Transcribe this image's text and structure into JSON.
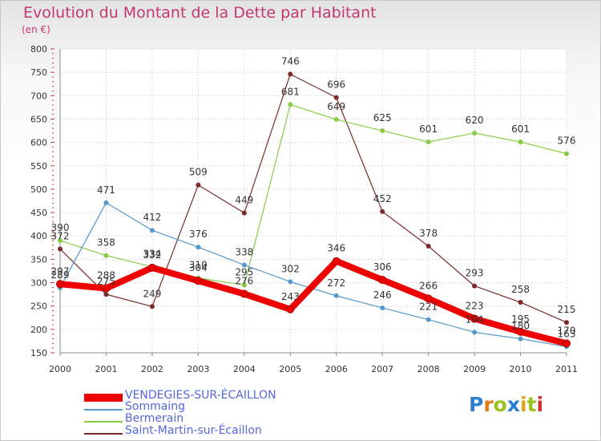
{
  "header": {
    "title": "Evolution du Montant de la Dette par Habitant",
    "subtitle": "(en €)"
  },
  "logo": {
    "letters": [
      "P",
      "r",
      "o",
      "x",
      "i",
      "t",
      "i"
    ],
    "colors": [
      "#2a7fd0",
      "#e07a16",
      "#9bc21c",
      "#2a7fd0",
      "#e0a516",
      "#9bc21c",
      "#d23030"
    ]
  },
  "chart_data": {
    "type": "line",
    "title": "Evolution du Montant de la Dette par Habitant",
    "subtitle": "(en €)",
    "xlabel": "",
    "ylabel": "",
    "x": [
      "2000",
      "2001",
      "2002",
      "2003",
      "2004",
      "2005",
      "2006",
      "2007",
      "2008",
      "2009",
      "2010",
      "2011"
    ],
    "ylim": [
      150,
      800
    ],
    "yticks": [
      150,
      200,
      250,
      300,
      350,
      400,
      450,
      500,
      550,
      600,
      650,
      700,
      750,
      800
    ],
    "grid": true,
    "legend_position": "bottom-left",
    "series": [
      {
        "name": "Saint-Martin-sur-Écaillon",
        "color": "#7a2a2a",
        "values": [
          372,
          275,
          249,
          509,
          449,
          746,
          696,
          452,
          378,
          293,
          258,
          215
        ],
        "labels": [
          "372",
          "275",
          "249",
          "509",
          "449",
          "746",
          "696",
          "452",
          "378",
          "293",
          "258",
          "215"
        ]
      },
      {
        "name": "Bermerain",
        "color": "#88cc44",
        "values": [
          390,
          358,
          334,
          310,
          295,
          681,
          649,
          625,
          601,
          620,
          601,
          576
        ],
        "labels": [
          "390",
          "358",
          "334",
          "310",
          "295",
          "681",
          "649",
          "625",
          "601",
          "620",
          "601",
          "576"
        ]
      },
      {
        "name": "Sommaing",
        "color": "#5599cc",
        "values": [
          289,
          471,
          412,
          376,
          338,
          302,
          272,
          246,
          221,
          194,
          180,
          163
        ],
        "labels": [
          "289",
          "471",
          "412",
          "376",
          "338",
          "302",
          "272",
          "246",
          "221",
          "194",
          "180",
          "163"
        ]
      },
      {
        "name": "VENDEGIES-SUR-ÉCAILLON",
        "color": "#ee0000",
        "values": [
          297,
          288,
          332,
          304,
          276,
          243,
          346,
          306,
          266,
          223,
          195,
          170
        ],
        "labels": [
          "297",
          "288",
          "332",
          "304",
          "276",
          "243",
          "346",
          "306",
          "266",
          "223",
          "195",
          "170"
        ]
      }
    ],
    "legend": [
      "VENDEGIES-SUR-ÉCAILLON",
      "Sommaing",
      "Bermerain",
      "Saint-Martin-sur-Écaillon"
    ]
  }
}
